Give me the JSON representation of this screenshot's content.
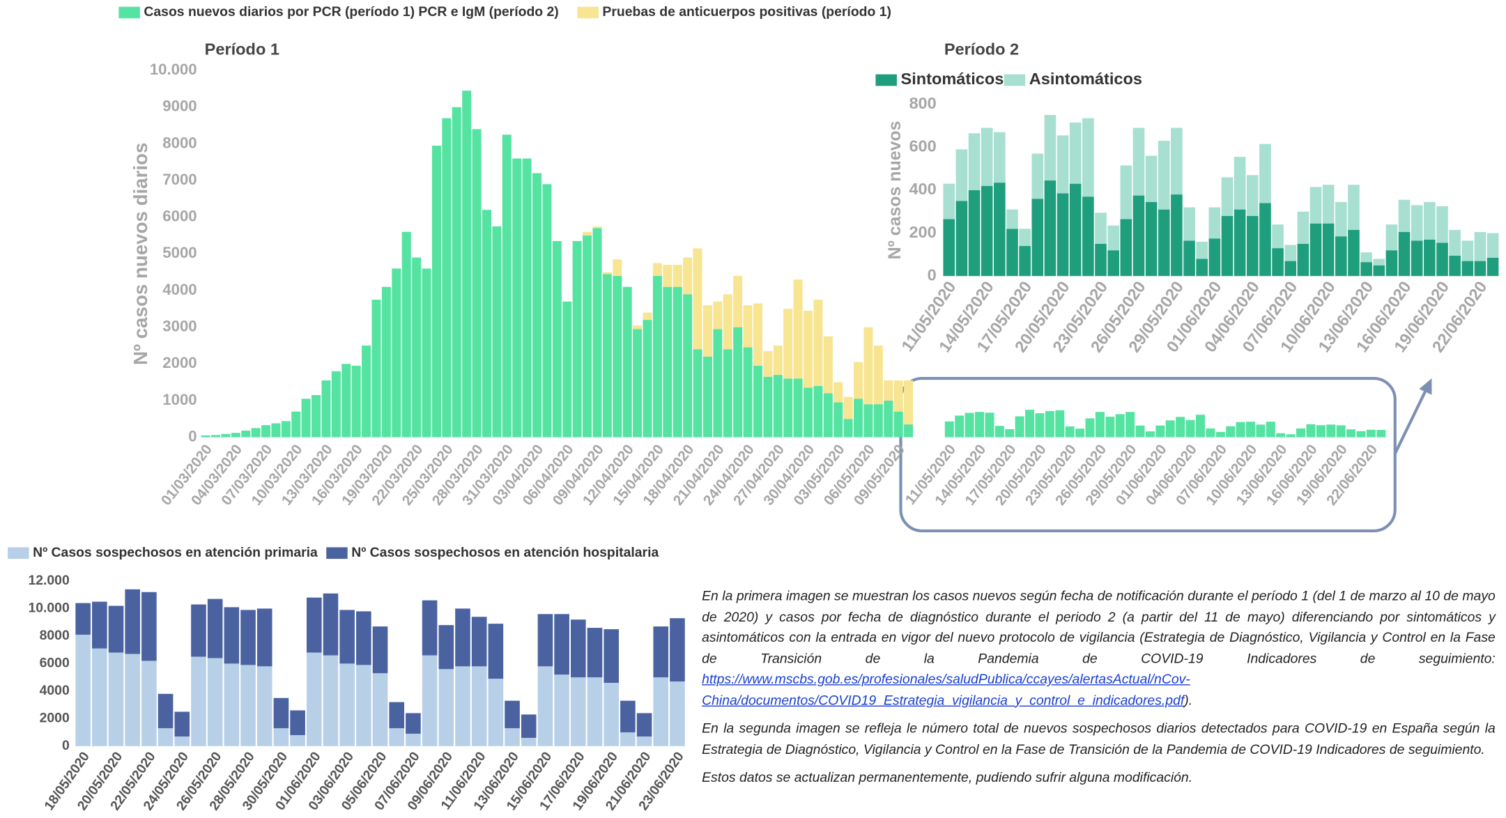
{
  "chart_data": [
    {
      "type": "bar",
      "stacked": true,
      "title": "Período 1",
      "y_label": "Nº casos nuevos diarios",
      "grid": false,
      "categories": [
        "01/03/2020",
        null,
        null,
        "04/03/2020",
        null,
        null,
        "07/03/2020",
        null,
        null,
        "10/03/2020",
        null,
        null,
        "13/03/2020",
        null,
        null,
        "16/03/2020",
        null,
        null,
        "19/03/2020",
        null,
        null,
        "22/03/2020",
        null,
        null,
        "25/03/2020",
        null,
        null,
        "28/03/2020",
        null,
        null,
        "31/03/2020",
        null,
        null,
        "03/04/2020",
        null,
        null,
        "06/04/2020",
        null,
        null,
        "09/04/2020",
        null,
        null,
        "12/04/2020",
        null,
        null,
        "15/04/2020",
        null,
        null,
        "18/04/2020",
        null,
        null,
        "21/04/2020",
        null,
        null,
        "24/04/2020",
        null,
        null,
        "27/04/2020",
        null,
        null,
        "30/04/2020",
        null,
        null,
        "03/05/2020",
        null,
        null,
        "06/05/2020",
        null,
        null,
        "09/05/2020",
        null,
        "11/05/2020",
        null,
        null,
        "14/05/2020",
        null,
        null,
        "17/05/2020",
        null,
        null,
        "20/05/2020",
        null,
        null,
        "23/05/2020",
        null,
        null,
        "26/05/2020",
        null,
        null,
        "29/05/2020",
        null,
        null,
        "01/06/2020",
        null,
        null,
        "04/06/2020",
        null,
        null,
        "07/06/2020",
        null,
        null,
        "10/06/2020",
        null,
        null,
        "13/06/2020",
        null,
        null,
        "16/06/2020",
        null,
        null,
        "19/06/2020",
        null,
        null,
        "22/06/2020",
        null
      ],
      "series": [
        {
          "name": "Casos nuevos diarios por PCR (período 1) PCR e IgM (período 2)",
          "color": "#55e3a2",
          "values": [
            50,
            60,
            90,
            120,
            180,
            250,
            330,
            380,
            440,
            700,
            1050,
            1150,
            1550,
            1800,
            2000,
            1950,
            2500,
            3750,
            4100,
            4600,
            5600,
            4900,
            4600,
            7950,
            8700,
            9000,
            9450,
            8400,
            6200,
            5750,
            8250,
            7600,
            7600,
            7200,
            6900,
            5350,
            3700,
            5350,
            5500,
            5700,
            4450,
            4400,
            4100,
            2950,
            3200,
            4400,
            4100,
            4100,
            3900,
            2400,
            2200,
            2950,
            2400,
            3000,
            2450,
            1950,
            1650,
            1700,
            1600,
            1600,
            1350,
            1400,
            1200,
            950,
            500,
            1050,
            900,
            900,
            1000,
            700,
            350,
            430,
            590,
            665,
            690,
            670,
            310,
            220,
            570,
            750,
            655,
            715,
            735,
            295,
            235,
            515,
            690,
            560,
            630,
            690,
            320,
            160,
            320,
            460,
            555,
            470,
            615,
            240,
            145,
            300,
            415,
            425,
            345,
            425,
            110,
            80,
            240,
            355,
            330,
            345,
            325,
            215,
            165,
            205,
            200
          ]
        },
        {
          "name": "Pruebas de anticuerpos positivas (período 1)",
          "color": "#f7e592",
          "values": [
            0,
            0,
            0,
            0,
            0,
            0,
            0,
            0,
            0,
            0,
            0,
            0,
            0,
            0,
            0,
            0,
            0,
            0,
            0,
            0,
            0,
            0,
            0,
            0,
            0,
            0,
            0,
            0,
            0,
            0,
            0,
            0,
            0,
            0,
            0,
            0,
            0,
            0,
            100,
            50,
            50,
            450,
            0,
            100,
            200,
            350,
            600,
            600,
            1000,
            2750,
            1400,
            750,
            1500,
            1400,
            1150,
            1700,
            700,
            800,
            1900,
            2700,
            2100,
            2350,
            1550,
            550,
            600,
            1000,
            2100,
            1600,
            550,
            850,
            1200,
            null,
            null,
            null,
            null,
            null,
            null,
            null,
            null,
            null,
            null,
            null,
            null,
            null,
            null,
            null,
            null,
            null,
            null,
            null,
            null,
            null,
            null,
            null,
            null,
            null,
            null,
            null,
            null,
            null,
            null,
            null,
            null,
            null,
            null,
            null,
            null,
            null,
            null,
            null,
            null,
            null,
            null,
            null,
            null
          ]
        }
      ],
      "ylim": [
        0,
        10000
      ],
      "yticks": [
        0,
        1000,
        2000,
        3000,
        4000,
        5000,
        6000,
        7000,
        8000,
        9000,
        {
          "value": 10000,
          "label": "10.000"
        }
      ]
    },
    {
      "type": "bar",
      "stacked": true,
      "title": "Período 2",
      "y_label": "Nº casos nuevos",
      "grid": false,
      "categories": [
        "11/05/2020",
        null,
        null,
        "14/05/2020",
        null,
        null,
        "17/05/2020",
        null,
        null,
        "20/05/2020",
        null,
        null,
        "23/05/2020",
        null,
        null,
        "26/05/2020",
        null,
        null,
        "29/05/2020",
        null,
        null,
        "01/06/2020",
        null,
        null,
        "04/06/2020",
        null,
        null,
        "07/06/2020",
        null,
        null,
        "10/06/2020",
        null,
        null,
        "13/06/2020",
        null,
        null,
        "16/06/2020",
        null,
        null,
        "19/06/2020",
        null,
        null,
        "22/06/2020",
        null
      ],
      "series": [
        {
          "name": "Sintomáticos",
          "color": "#1f9e7d",
          "values": [
            265,
            350,
            400,
            420,
            435,
            220,
            140,
            360,
            445,
            385,
            430,
            370,
            150,
            120,
            265,
            375,
            345,
            310,
            380,
            165,
            80,
            175,
            280,
            310,
            280,
            340,
            130,
            70,
            150,
            245,
            245,
            185,
            215,
            65,
            50,
            120,
            205,
            165,
            170,
            155,
            95,
            70,
            70,
            85
          ]
        },
        {
          "name": "Asintomáticos",
          "color": "#a7dfd1",
          "values": [
            165,
            240,
            265,
            270,
            235,
            90,
            80,
            210,
            305,
            270,
            285,
            365,
            145,
            115,
            250,
            315,
            215,
            320,
            310,
            155,
            80,
            145,
            180,
            245,
            190,
            275,
            110,
            75,
            150,
            170,
            180,
            160,
            210,
            45,
            30,
            120,
            150,
            165,
            175,
            170,
            120,
            95,
            135,
            115
          ]
        }
      ],
      "ylim": [
        0,
        800
      ],
      "yticks": [
        0,
        200,
        400,
        600,
        800
      ]
    },
    {
      "type": "bar",
      "stacked": true,
      "grid": false,
      "categories": [
        "18/05/2020",
        null,
        "20/05/2020",
        null,
        "22/05/2020",
        null,
        "24/05/2020",
        null,
        "26/05/2020",
        null,
        "28/05/2020",
        null,
        "30/05/2020",
        null,
        "01/06/2020",
        null,
        "03/06/2020",
        null,
        "05/06/2020",
        null,
        "07/06/2020",
        null,
        "09/06/2020",
        null,
        "11/06/2020",
        null,
        "13/06/2020",
        null,
        "15/06/2020",
        null,
        "17/06/2020",
        null,
        "19/06/2020",
        null,
        "21/06/2020",
        null,
        "23/06/2020"
      ],
      "series": [
        {
          "name": "Nº Casos sospechosos en atención primaria",
          "color": "#b8d0e7",
          "values": [
            8100,
            7100,
            6800,
            6700,
            6200,
            1300,
            700,
            6500,
            6400,
            6000,
            5900,
            5800,
            1300,
            800,
            6800,
            6600,
            6000,
            5900,
            5300,
            1300,
            900,
            6600,
            5600,
            5800,
            5800,
            4900,
            1300,
            600,
            5800,
            5200,
            5000,
            5000,
            4600,
            1000,
            700,
            5000,
            4700
          ]
        },
        {
          "name": "Nº Casos sospechosos en atención hospitalaria",
          "color": "#4a63a0",
          "values": [
            2300,
            3400,
            3400,
            4700,
            5000,
            2500,
            1800,
            3800,
            4300,
            4100,
            4000,
            4200,
            2200,
            1800,
            4000,
            4500,
            3900,
            3900,
            3400,
            1900,
            1500,
            4000,
            3200,
            4200,
            3600,
            4000,
            2000,
            1700,
            3800,
            4400,
            4200,
            3600,
            3900,
            2300,
            1700,
            3700,
            4600
          ]
        }
      ],
      "ylim": [
        0,
        12000
      ],
      "yticks": [
        0,
        2000,
        4000,
        6000,
        8000,
        {
          "value": 10000,
          "label": "10.000"
        },
        {
          "value": 12000,
          "label": "12.000"
        }
      ]
    }
  ],
  "notes": [
    {
      "text": "En la primera imagen se muestran los casos nuevos según fecha de notificación durante el período 1 (del 1 de marzo al 10 de mayo de 2020) y casos por fecha de diagnóstico durante el periodo 2 (a partir del 11 de mayo) diferenciando por sintomáticos y asintomáticos con la entrada en vigor del nuevo protocolo de vigilancia (Estrategia de Diagnóstico, Vigilancia y Control en la Fase de Transición de la Pandemia de COVID-19 Indicadores de seguimiento: ",
      "link": "https://www.mscbs.gob.es/profesionales/saludPublica/ccayes/alertasActual/nCov-China/documentos/COVID19_Estrategia_vigilancia_y_control_e_indicadores.pdf",
      "after": ")."
    },
    {
      "text": "En la segunda imagen se refleja le número total de nuevos sospechosos diarios detectados para COVID-19 en España según la  Estrategia de Diagnóstico, Vigilancia y Control en la Fase de Transición de la Pandemia de COVID-19 Indicadores de seguimiento."
    },
    {
      "text": "Estos datos se actualizan permanentemente, pudiendo sufrir alguna modificación."
    }
  ]
}
